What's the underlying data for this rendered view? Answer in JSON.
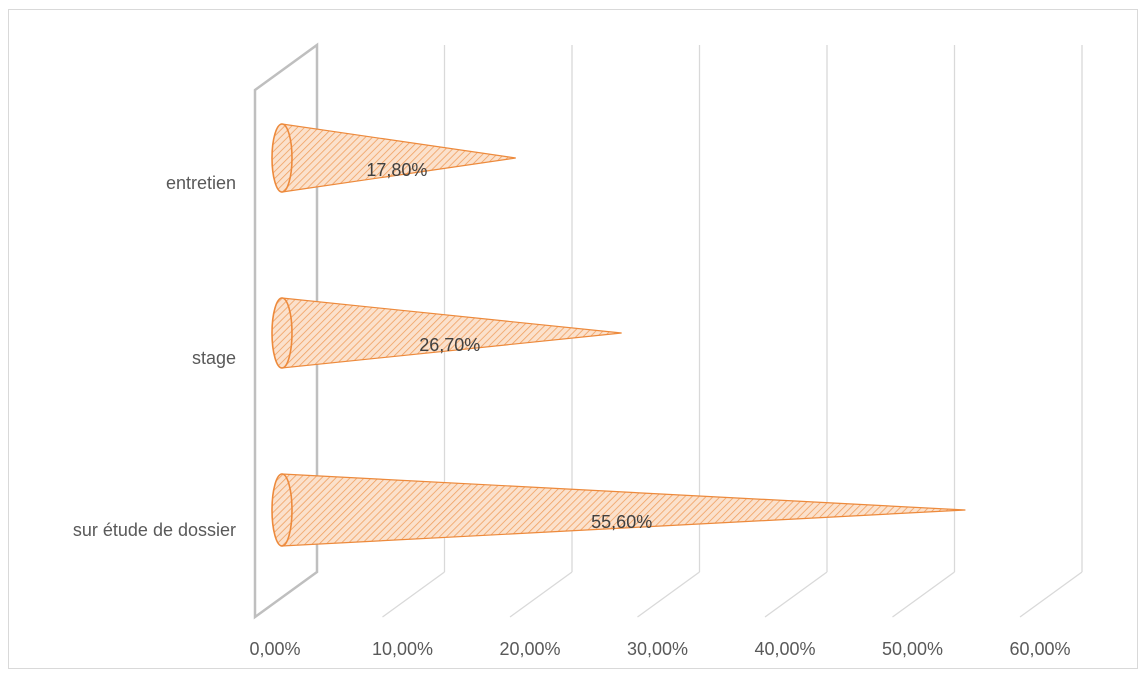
{
  "chart_data": {
    "type": "bar",
    "shape": "cone",
    "orientation": "horizontal",
    "categories": [
      "entretien",
      "stage",
      "sur étude de dossier"
    ],
    "values": [
      17.8,
      26.7,
      55.6
    ],
    "data_labels": [
      "17,80%",
      "26,70%",
      "55,60%"
    ],
    "x_ticks": [
      "0,00%",
      "10,00%",
      "20,00%",
      "30,00%",
      "40,00%",
      "50,00%",
      "60,00%"
    ],
    "xlim": [
      0,
      60
    ],
    "grid": true,
    "legend": "none",
    "colors": {
      "fill": "#f8cba6",
      "stroke": "#ed8a3c",
      "grid": "#d9d9d9",
      "wall": "#bfbfbf"
    }
  }
}
